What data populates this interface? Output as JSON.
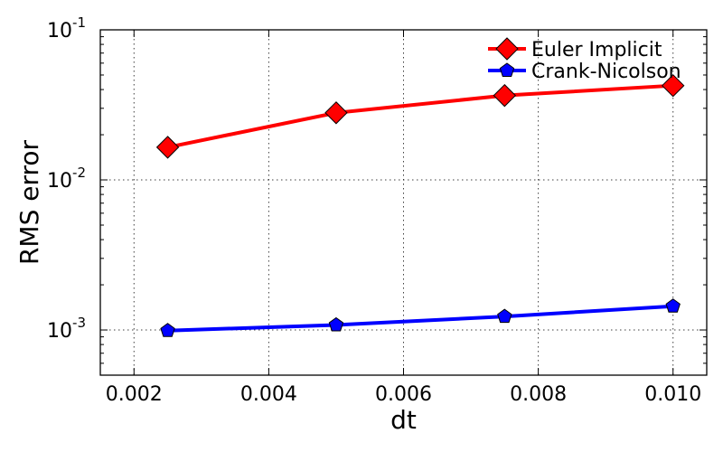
{
  "chart_data": {
    "type": "line",
    "title": "",
    "xlabel": "dt",
    "ylabel": "RMS error",
    "xlim": [
      0.0015,
      0.0105
    ],
    "ylim": [
      0.0005,
      0.1
    ],
    "yscale": "log",
    "grid": true,
    "legend_position": "top-right",
    "x_ticks": [
      0.002,
      0.004,
      0.006,
      0.008,
      0.01
    ],
    "x_tick_labels": [
      "0.002",
      "0.004",
      "0.006",
      "0.008",
      "0.010"
    ],
    "y_ticks": [
      0.001,
      0.01,
      0.1
    ],
    "y_tick_labels": [
      {
        "base": "10",
        "exp": "-3"
      },
      {
        "base": "10",
        "exp": "-2"
      },
      {
        "base": "10",
        "exp": "-1"
      }
    ],
    "series": [
      {
        "name": "Euler Implicit",
        "color": "#ff0000",
        "marker": "diamond",
        "x": [
          0.0025,
          0.005,
          0.0075,
          0.01
        ],
        "y": [
          0.0165,
          0.028,
          0.0365,
          0.0425
        ]
      },
      {
        "name": "Crank-Nicolson",
        "color": "#0000ff",
        "marker": "pentagon",
        "x": [
          0.0025,
          0.005,
          0.0075,
          0.01
        ],
        "y": [
          0.00099,
          0.00108,
          0.00123,
          0.00144
        ]
      }
    ]
  }
}
